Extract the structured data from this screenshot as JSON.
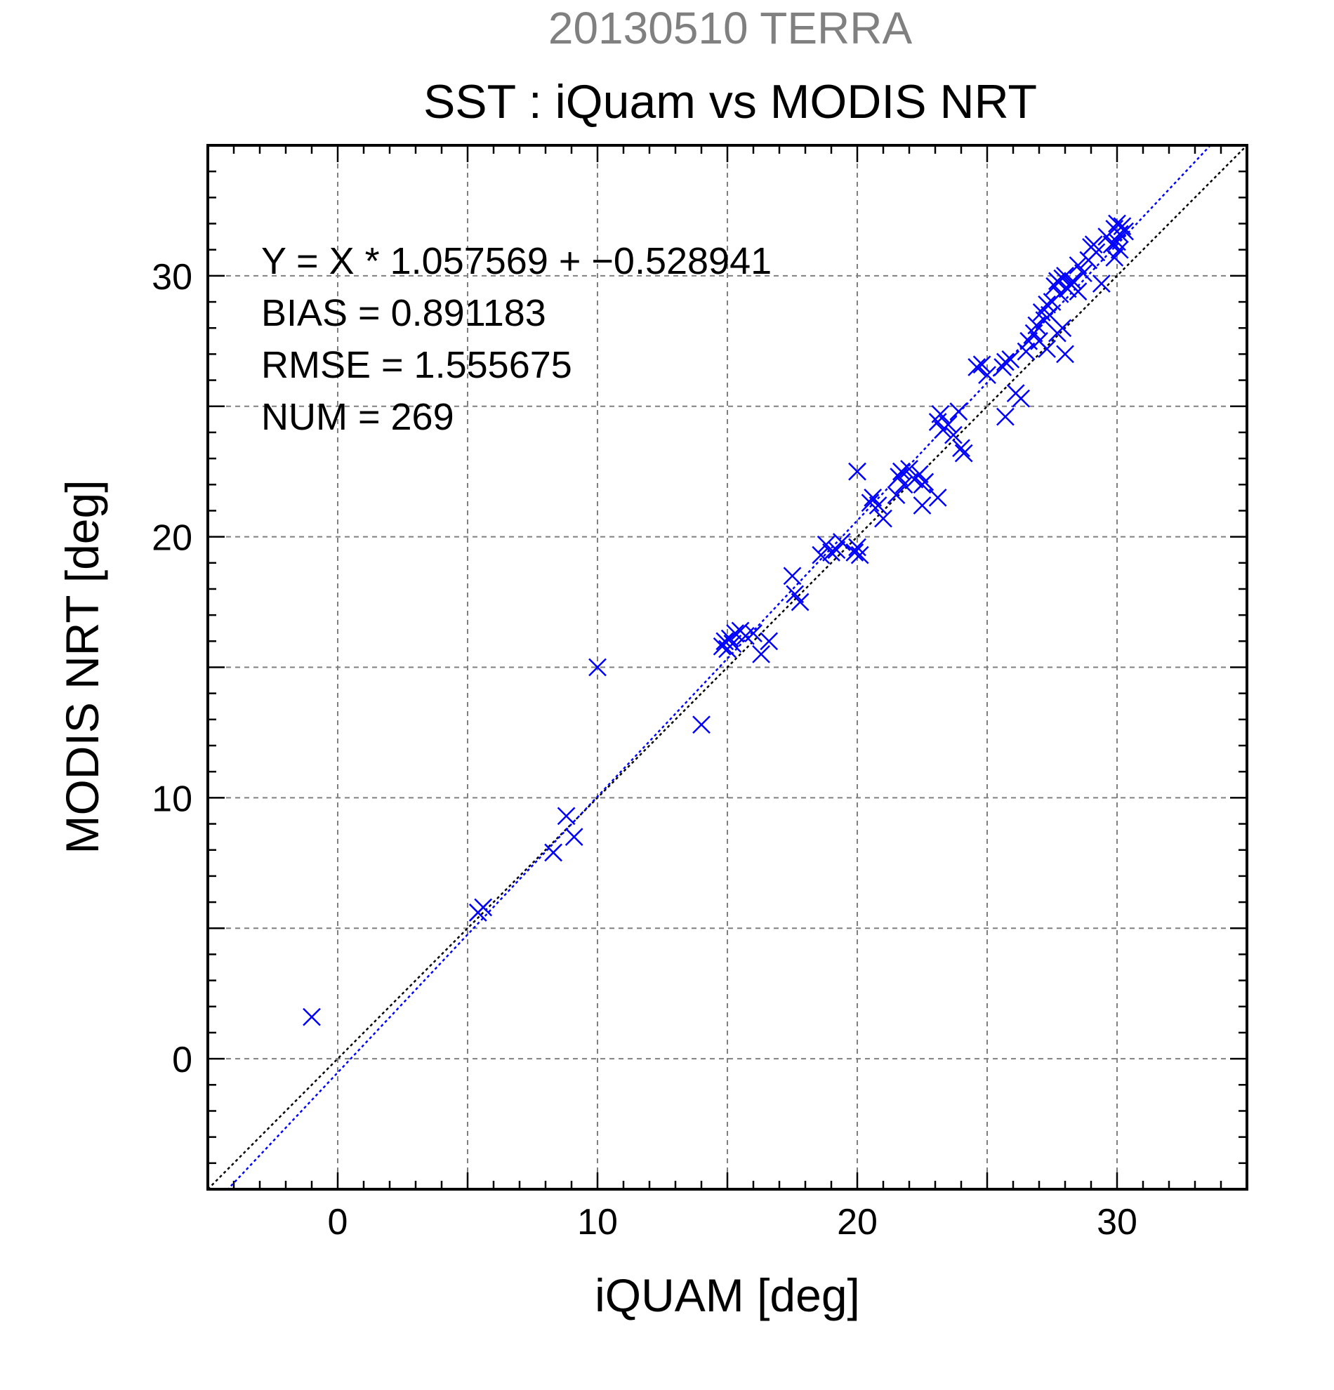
{
  "chart_data": {
    "type": "scatter",
    "title": "20130510 TERRA",
    "subtitle": "SST : iQuam vs MODIS NRT",
    "xlabel": "iQUAM [deg]",
    "ylabel": "MODIS NRT [deg]",
    "xlim": [
      -5,
      35
    ],
    "ylim": [
      -5,
      35
    ],
    "xticks": [
      0,
      10,
      20,
      30
    ],
    "yticks": [
      0,
      10,
      20,
      30
    ],
    "xtick_labels": [
      "0",
      "10",
      "20",
      "30"
    ],
    "ytick_labels": [
      "0",
      "10",
      "20",
      "30"
    ],
    "grid": true,
    "minor_tick_step": 1,
    "annotations": [
      "Y = X * 1.057569 + −0.528941",
      "BIAS = 0.891183",
      "RMSE = 1.555675",
      "NUM = 269"
    ],
    "fit_line": {
      "slope": 1.057569,
      "intercept": -0.528941
    },
    "identity_line": {
      "slope": 1,
      "intercept": 0
    },
    "colors": {
      "title": "#808080",
      "text": "#000000",
      "points": "#0000ff",
      "fit_line": "#0000ff",
      "identity_line": "#000000",
      "grid": "#808080"
    },
    "series": [
      {
        "marker": "x",
        "x": [
          -1.0,
          5.6,
          5.4,
          8.3,
          8.8,
          9.1,
          10.0,
          14.0,
          14.8,
          14.9,
          15.0,
          15.1,
          15.2,
          15.3,
          15.5,
          15.7,
          16.0,
          16.3,
          16.6,
          17.5,
          17.6,
          17.8,
          18.6,
          18.8,
          19.0,
          19.2,
          19.4,
          19.9,
          20.0,
          20.1,
          20.0,
          20.5,
          20.6,
          20.8,
          21.0,
          21.5,
          21.6,
          21.7,
          21.8,
          22.0,
          22.2,
          22.4,
          22.5,
          22.6,
          23.1,
          22.5,
          23.1,
          23.2,
          23.3,
          23.5,
          23.7,
          23.9,
          24.0,
          24.1,
          24.6,
          24.8,
          25.0,
          25.6,
          25.7,
          25.9,
          26.1,
          26.3,
          25.7,
          26.5,
          26.8,
          26.9,
          27.0,
          27.1,
          27.2,
          27.3,
          27.4,
          27.5,
          27.6,
          27.7,
          27.8,
          27.9,
          28.0,
          28.1,
          28.2,
          28.3,
          28.5,
          28.7,
          28.9,
          29.0,
          29.2,
          29.4,
          28.0,
          29.6,
          29.8,
          29.9,
          30.0,
          30.1,
          30.2,
          30.3,
          30.1,
          29.9,
          30.0,
          27.7,
          27.9,
          28.5,
          29.1,
          26.6,
          27.3
        ],
        "y": [
          1.6,
          5.8,
          5.6,
          7.9,
          9.3,
          8.5,
          15.0,
          12.8,
          15.8,
          16.0,
          15.7,
          16.1,
          15.9,
          16.3,
          16.4,
          16.2,
          16.3,
          15.5,
          16.0,
          18.5,
          17.8,
          17.5,
          19.3,
          19.7,
          19.4,
          19.5,
          19.8,
          19.4,
          19.6,
          19.3,
          22.5,
          21.3,
          21.5,
          21.2,
          20.7,
          21.6,
          22.3,
          22.5,
          22.0,
          22.6,
          22.2,
          22.4,
          22.0,
          22.1,
          21.5,
          21.2,
          24.4,
          24.7,
          24.1,
          24.3,
          23.9,
          24.8,
          23.4,
          23.2,
          26.5,
          26.6,
          26.2,
          26.5,
          24.6,
          26.8,
          25.5,
          25.3,
          26.7,
          27.1,
          27.8,
          28.1,
          27.5,
          28.6,
          28.3,
          28.9,
          28.5,
          29.0,
          29.6,
          29.8,
          29.3,
          29.9,
          30.0,
          29.5,
          29.7,
          29.8,
          29.4,
          30.1,
          30.6,
          31.1,
          30.9,
          29.7,
          27.0,
          31.5,
          31.2,
          31.8,
          32.0,
          31.6,
          31.9,
          31.7,
          31.0,
          30.7,
          31.3,
          27.8,
          28.0,
          30.4,
          31.2,
          27.5,
          27.2
        ]
      }
    ]
  }
}
